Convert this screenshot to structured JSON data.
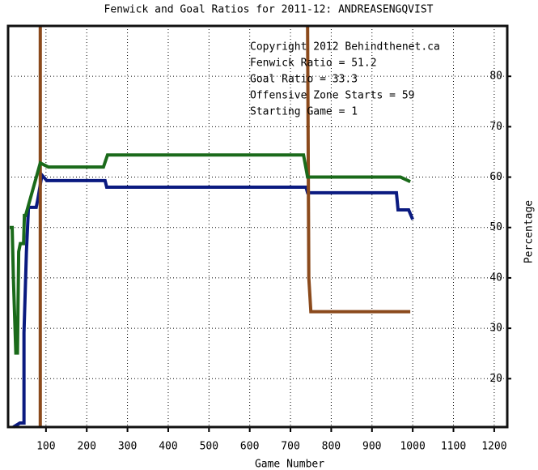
{
  "chart_data": {
    "type": "line",
    "title": "Fenwick and Goal Ratios for 2011-12: ANDREASENGQVIST",
    "x_label": "Game Number",
    "y_label": "Percentage",
    "annotations": [
      "Copyright 2012 Behindthenet.ca",
      "Starting Game = 1"
    ],
    "xlim": [
      7,
      1232
    ],
    "ylim": [
      10.4,
      90
    ],
    "xticks": [
      100,
      200,
      300,
      400,
      500,
      600,
      700,
      800,
      900,
      1000,
      1100,
      1200
    ],
    "yticks": [
      20,
      30,
      40,
      50,
      60,
      70,
      80
    ],
    "grid": true,
    "series": [
      {
        "name": "Fenwick Ratio = 51.2",
        "color": "#0a1a80",
        "x": [
          20,
          36,
          46,
          46,
          52,
          57,
          76,
          80,
          90,
          102,
          245,
          249,
          738,
          742,
          960,
          964,
          990,
          1000
        ],
        "values": [
          10.4,
          11.2,
          11.2,
          29.1,
          45.2,
          54,
          54,
          55.6,
          60.4,
          59.3,
          59.3,
          58,
          58,
          56.9,
          56.9,
          53.5,
          53.5,
          51.6
        ]
      },
      {
        "name": "Goal Ratio = 33.3",
        "color": "#8b4a1c",
        "x": [
          86,
          86,
          null,
          742,
          745,
          750,
          994
        ],
        "values": [
          90,
          10.4,
          null,
          90,
          40,
          33.3,
          33.3
        ]
      },
      {
        "name": "Offensive Zone Starts = 59",
        "color": "#1a6a1a",
        "x": [
          11,
          17,
          20,
          26,
          30,
          33,
          37,
          45,
          47,
          50,
          86,
          106,
          241,
          251,
          732,
          742,
          970,
          994
        ],
        "values": [
          50,
          50,
          40,
          25.1,
          25.1,
          45.2,
          46.8,
          46.8,
          52.4,
          52.4,
          62.8,
          62,
          62,
          64.4,
          64.4,
          60,
          60,
          59.1
        ]
      }
    ]
  }
}
